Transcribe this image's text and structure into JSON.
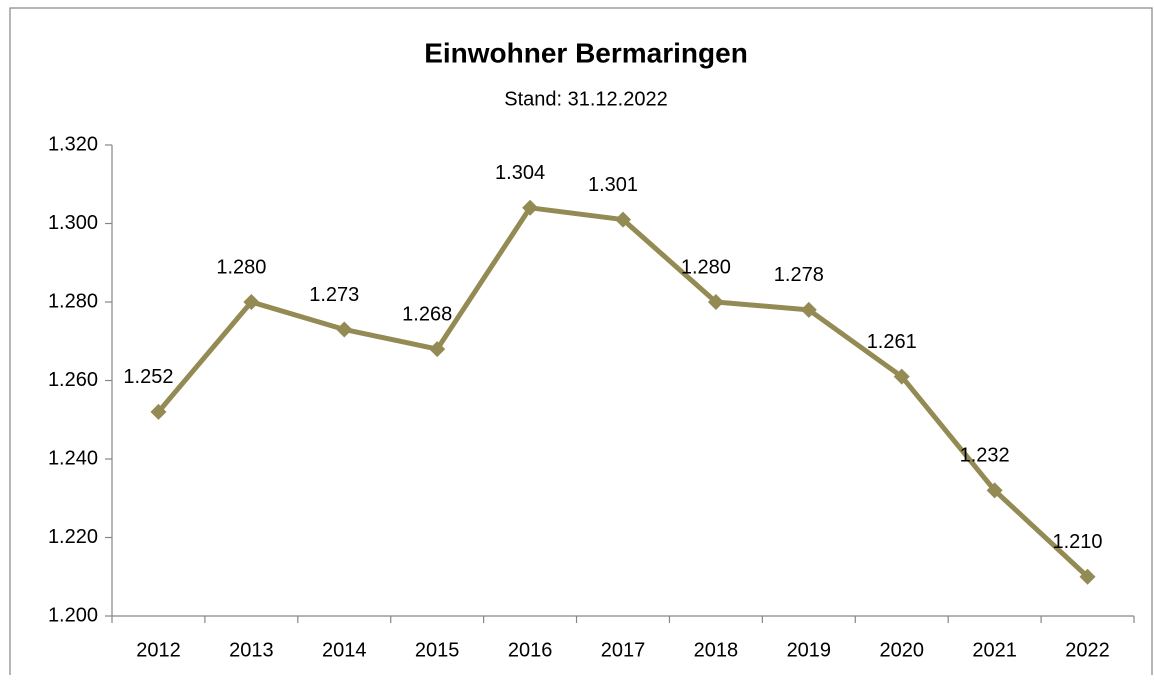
{
  "chart_data": {
    "type": "line",
    "title": "Einwohner Bermaringen",
    "subtitle": "Stand: 31.12.2022",
    "categories": [
      "2012",
      "2013",
      "2014",
      "2015",
      "2016",
      "2017",
      "2018",
      "2019",
      "2020",
      "2021",
      "2022"
    ],
    "values": [
      1252,
      1280,
      1273,
      1268,
      1304,
      1301,
      1280,
      1278,
      1261,
      1232,
      1210
    ],
    "value_labels": [
      "1.252",
      "1.280",
      "1.273",
      "1.268",
      "1.304",
      "1.301",
      "1.280",
      "1.278",
      "1.261",
      "1.232",
      "1.210"
    ],
    "color": "#948a54",
    "ylim": [
      1200,
      1320
    ],
    "yticks": [
      {
        "value": 1200,
        "label": "1.200"
      },
      {
        "value": 1220,
        "label": "1.220"
      },
      {
        "value": 1240,
        "label": "1.240"
      },
      {
        "value": 1260,
        "label": "1.260"
      },
      {
        "value": 1280,
        "label": "1.280"
      },
      {
        "value": 1300,
        "label": "1.300"
      },
      {
        "value": 1320,
        "label": "1.320"
      }
    ],
    "grid": false
  }
}
